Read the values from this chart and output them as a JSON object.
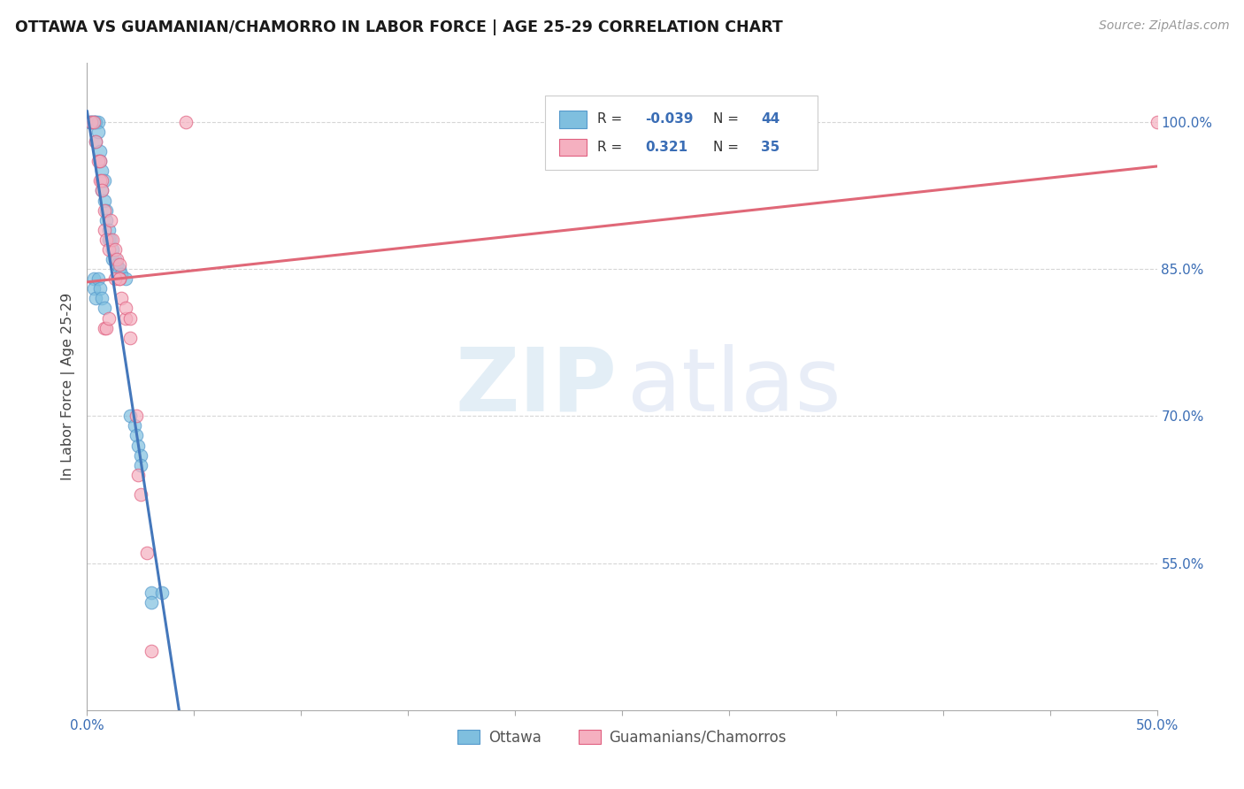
{
  "title": "OTTAWA VS GUAMANIAN/CHAMORRO IN LABOR FORCE | AGE 25-29 CORRELATION CHART",
  "source": "Source: ZipAtlas.com",
  "ylabel": "In Labor Force | Age 25-29",
  "xlim": [
    0.0,
    0.5
  ],
  "ylim": [
    0.4,
    1.06
  ],
  "xtick_pos": [
    0.0,
    0.05,
    0.1,
    0.15,
    0.2,
    0.25,
    0.3,
    0.35,
    0.4,
    0.45,
    0.5
  ],
  "xtick_labels": [
    "0.0%",
    "",
    "",
    "",
    "",
    "",
    "",
    "",
    "",
    "",
    "50.0%"
  ],
  "ytick_pos": [
    0.5,
    0.55,
    0.6,
    0.65,
    0.7,
    0.75,
    0.8,
    0.85,
    0.9,
    0.95,
    1.0
  ],
  "ytick_labels": [
    "",
    "55.0%",
    "",
    "",
    "70.0%",
    "",
    "",
    "85.0%",
    "",
    "",
    "100.0%"
  ],
  "legend_R_blue": "-0.039",
  "legend_N_blue": "44",
  "legend_R_pink": "0.321",
  "legend_N_pink": "35",
  "blue_scatter_color": "#7fbfdf",
  "blue_edge_color": "#5599cc",
  "pink_scatter_color": "#f5b0c0",
  "pink_edge_color": "#e06080",
  "blue_line_color": "#4477bb",
  "blue_dash_color": "#99bbdd",
  "pink_line_color": "#e06878",
  "grid_color": "#cccccc",
  "blue_scatter_x": [
    0.001,
    0.002,
    0.002,
    0.003,
    0.003,
    0.004,
    0.004,
    0.004,
    0.005,
    0.005,
    0.006,
    0.006,
    0.007,
    0.007,
    0.008,
    0.008,
    0.009,
    0.009,
    0.01,
    0.01,
    0.011,
    0.012,
    0.012,
    0.013,
    0.014,
    0.015,
    0.016,
    0.018,
    0.02,
    0.022,
    0.023,
    0.024,
    0.025,
    0.025,
    0.003,
    0.003,
    0.004,
    0.005,
    0.006,
    0.007,
    0.008,
    0.03,
    0.03,
    0.035
  ],
  "blue_scatter_y": [
    1.0,
    1.0,
    1.0,
    1.0,
    1.0,
    1.0,
    1.0,
    0.98,
    1.0,
    0.99,
    0.97,
    0.96,
    0.95,
    0.93,
    0.94,
    0.92,
    0.91,
    0.9,
    0.89,
    0.88,
    0.88,
    0.87,
    0.86,
    0.86,
    0.855,
    0.85,
    0.845,
    0.84,
    0.7,
    0.69,
    0.68,
    0.67,
    0.66,
    0.65,
    0.84,
    0.83,
    0.82,
    0.84,
    0.83,
    0.82,
    0.81,
    0.52,
    0.51,
    0.52
  ],
  "pink_scatter_x": [
    0.002,
    0.003,
    0.004,
    0.005,
    0.006,
    0.006,
    0.007,
    0.007,
    0.008,
    0.008,
    0.009,
    0.01,
    0.011,
    0.012,
    0.013,
    0.014,
    0.015,
    0.015,
    0.016,
    0.018,
    0.02,
    0.023,
    0.024,
    0.025,
    0.028,
    0.03,
    0.013,
    0.015,
    0.018,
    0.02,
    0.008,
    0.009,
    0.01,
    0.046,
    0.5
  ],
  "pink_scatter_y": [
    1.0,
    1.0,
    0.98,
    0.96,
    0.96,
    0.94,
    0.94,
    0.93,
    0.91,
    0.89,
    0.88,
    0.87,
    0.9,
    0.88,
    0.87,
    0.86,
    0.855,
    0.84,
    0.82,
    0.8,
    0.78,
    0.7,
    0.64,
    0.62,
    0.56,
    0.46,
    0.84,
    0.84,
    0.81,
    0.8,
    0.79,
    0.79,
    0.8,
    1.0,
    1.0
  ]
}
